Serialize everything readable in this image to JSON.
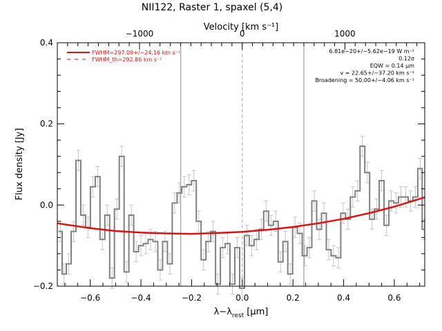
{
  "chart_data": {
    "type": "line",
    "title": "NII122, Raster 1, spaxel (5,4)",
    "xlabel": "λ−λ",
    "xlabel_sub": "rest",
    "xlabel_unit": " [μm]",
    "ylabel": "Flux density [Jy]",
    "top_axis_label": "Velocity [km s⁻¹]",
    "xlim": [
      -0.73,
      0.72
    ],
    "ylim": [
      -0.2,
      0.4
    ],
    "top_xlim": [
      -1800,
      1777
    ],
    "x_ticks": [
      -0.6,
      -0.4,
      -0.2,
      0.0,
      0.2,
      0.4,
      0.6
    ],
    "x_tick_labels": [
      "−0.6",
      "−0.4",
      "−0.2",
      "0.0",
      "0.2",
      "0.4",
      "0.6"
    ],
    "y_ticks": [
      -0.2,
      0.0,
      0.2,
      0.4
    ],
    "y_tick_labels": [
      "−0.2",
      "0.0",
      "0.2",
      "0.4"
    ],
    "top_ticks": [
      -1000,
      0,
      1000
    ],
    "top_tick_labels": [
      "−1000",
      "0",
      "1000"
    ],
    "vertical_lines": [
      {
        "x": -0.243,
        "style": "solid"
      },
      {
        "x": 0.0,
        "style": "dashed"
      },
      {
        "x": 0.243,
        "style": "solid"
      }
    ],
    "series": [
      {
        "kind": "step",
        "color": "#808080",
        "x": [
          -0.718,
          -0.704,
          -0.685,
          -0.666,
          -0.647,
          -0.628,
          -0.609,
          -0.59,
          -0.571,
          -0.552,
          -0.533,
          -0.514,
          -0.495,
          -0.476,
          -0.457,
          -0.438,
          -0.419,
          -0.4,
          -0.381,
          -0.362,
          -0.343,
          -0.324,
          -0.305,
          -0.286,
          -0.267,
          -0.248,
          -0.229,
          -0.21,
          -0.191,
          -0.172,
          -0.153,
          -0.134,
          -0.115,
          -0.096,
          -0.077,
          -0.058,
          -0.039,
          -0.02,
          -0.001,
          0.018,
          0.037,
          0.056,
          0.075,
          0.094,
          0.113,
          0.132,
          0.151,
          0.17,
          0.189,
          0.208,
          0.227,
          0.246,
          0.265,
          0.284,
          0.303,
          0.322,
          0.341,
          0.36,
          0.379,
          0.398,
          0.417,
          0.436,
          0.455,
          0.474,
          0.493,
          0.512,
          0.531,
          0.55,
          0.569,
          0.588,
          0.607,
          0.626,
          0.645,
          0.664,
          0.683,
          0.702,
          0.718
        ],
        "y": [
          -0.065,
          -0.17,
          -0.145,
          -0.065,
          0.11,
          -0.025,
          -0.055,
          0.045,
          0.07,
          -0.085,
          -0.025,
          -0.18,
          -0.01,
          0.12,
          -0.165,
          -0.025,
          -0.115,
          -0.1,
          -0.095,
          -0.085,
          -0.09,
          -0.16,
          -0.09,
          -0.145,
          0.005,
          0.03,
          0.045,
          0.05,
          0.06,
          -0.04,
          -0.135,
          -0.09,
          -0.065,
          -0.195,
          -0.105,
          -0.095,
          -0.195,
          -0.105,
          -0.205,
          -0.075,
          -0.1,
          -0.085,
          -0.06,
          -0.015,
          -0.05,
          -0.04,
          -0.14,
          -0.09,
          -0.17,
          -0.055,
          -0.07,
          -0.125,
          -0.105,
          0.01,
          -0.06,
          -0.02,
          -0.11,
          -0.125,
          -0.13,
          -0.02,
          -0.035,
          0.02,
          0.035,
          0.145,
          0.08,
          -0.035,
          -0.01,
          0.06,
          -0.05,
          0.01,
          0.005,
          0.02,
          0.02,
          0.01,
          0.02,
          0.09,
          -0.06
        ],
        "err": 0.025
      },
      {
        "kind": "line",
        "name": "FWHM=297.09+/−24.16 km s⁻¹",
        "color": "#dd1111",
        "style": "solid",
        "x": [
          -0.73,
          -0.6,
          -0.5,
          -0.4,
          -0.3,
          -0.2,
          -0.1,
          0.0,
          0.1,
          0.2,
          0.3,
          0.4,
          0.5,
          0.6,
          0.72
        ],
        "y": [
          -0.045,
          -0.057,
          -0.064,
          -0.068,
          -0.07,
          -0.071,
          -0.069,
          -0.066,
          -0.061,
          -0.054,
          -0.045,
          -0.034,
          -0.02,
          -0.004,
          0.019
        ]
      },
      {
        "kind": "legend-only",
        "name": "FWHM_th=292.86 km s⁻¹",
        "color": "#dd1111",
        "style": "dashed"
      }
    ],
    "legend_position": "top-left",
    "annotations": [
      "6.81e−20+/−5.62e−19 W m⁻²",
      "0.12σ",
      "EQW = 0.14 μm",
      "v = 22.65+/−37.20 km s⁻¹",
      "Broadening = 50.00+/−4.06 km s⁻¹"
    ]
  }
}
